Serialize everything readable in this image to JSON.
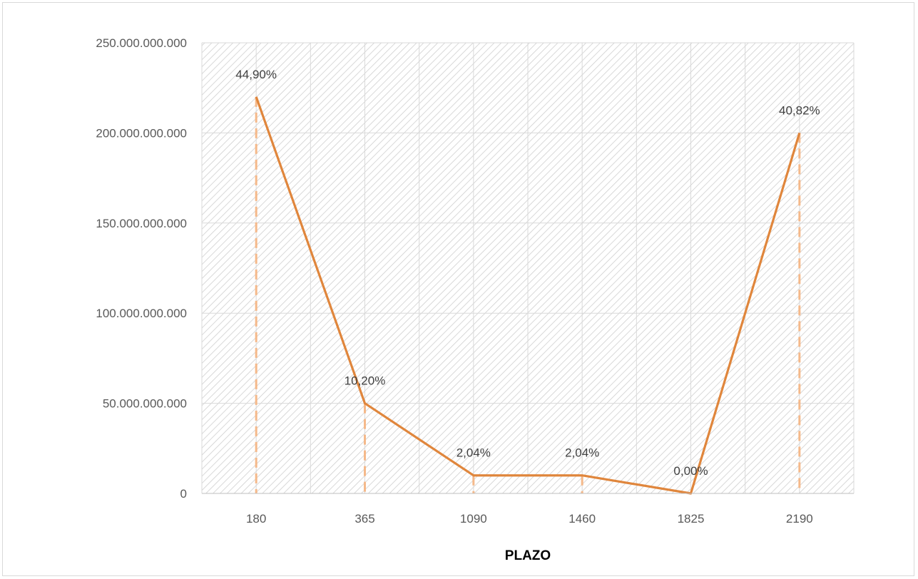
{
  "chart_data": {
    "type": "line",
    "title": "",
    "xlabel": "PLAZO",
    "ylabel": "",
    "x": [
      "180",
      "365",
      "1090",
      "1460",
      "1825",
      "2190"
    ],
    "series": [
      {
        "values": [
          220000000000,
          50000000000,
          10000000000,
          10000000000,
          0,
          200000000000
        ],
        "data_labels": [
          "44,90%",
          "10,20%",
          "2,04%",
          "2,04%",
          "0,00%",
          "40,82%"
        ]
      }
    ],
    "ylim": [
      0,
      250000000000
    ],
    "yticks": [
      0,
      50000000000,
      100000000000,
      150000000000,
      200000000000,
      250000000000
    ],
    "ytick_labels": [
      "0",
      "50.000.000.000",
      "100.000.000.000",
      "150.000.000.000",
      "200.000.000.000",
      "250.000.000.000"
    ],
    "grid": true,
    "drop_lines": true,
    "legend": "none",
    "colors": {
      "line": "#e0863c",
      "drop_line": "#f5b98a",
      "grid": "#d9d9d9",
      "hatch": "#c8c8c8"
    }
  }
}
